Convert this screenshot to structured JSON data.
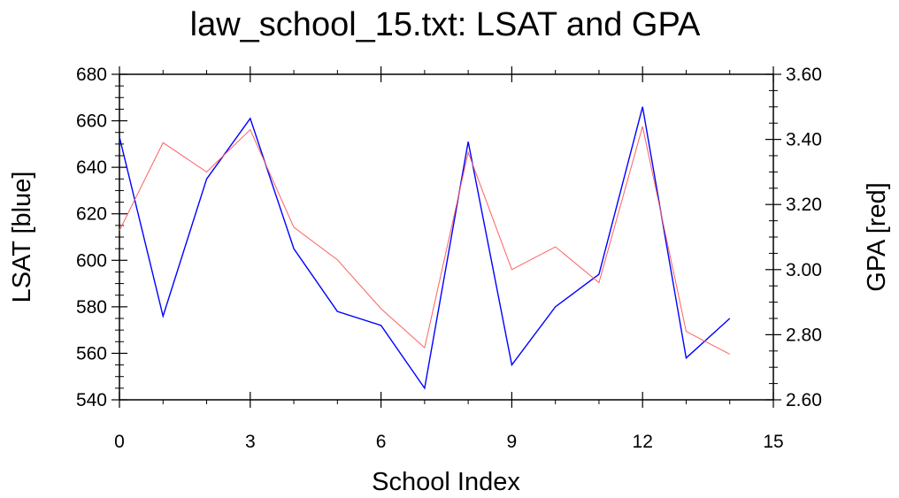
{
  "chart_data": {
    "type": "line",
    "title": "law_school_15.txt: LSAT and GPA",
    "xlabel": "School Index",
    "ylabel_left": "LSAT [blue]",
    "ylabel_right": "GPA [red]",
    "xlim": [
      0,
      15
    ],
    "ylim_left": [
      540,
      680
    ],
    "ylim_right": [
      2.6,
      3.6
    ],
    "x_ticks": [
      "0",
      "3",
      "6",
      "9",
      "12",
      "15"
    ],
    "y_left_ticks": [
      "540",
      "560",
      "580",
      "600",
      "620",
      "640",
      "660",
      "680"
    ],
    "y_right_ticks": [
      "2.60",
      "2.80",
      "3.00",
      "3.20",
      "3.40",
      "3.60"
    ],
    "grid": false,
    "x": [
      0,
      1,
      2,
      3,
      4,
      5,
      6,
      7,
      8,
      9,
      10,
      11,
      12,
      13,
      14
    ],
    "series": [
      {
        "name": "LSAT",
        "axis": "left",
        "color": "#0000ff",
        "values": [
          653,
          576,
          635,
          661,
          605,
          578,
          572,
          545,
          651,
          555,
          580,
          594,
          666,
          558,
          575
        ]
      },
      {
        "name": "GPA",
        "axis": "right",
        "color": "#ff6060",
        "values": [
          3.12,
          3.39,
          3.3,
          3.43,
          3.13,
          3.03,
          2.88,
          2.76,
          3.36,
          3.0,
          3.07,
          2.96,
          3.44,
          2.81,
          2.74
        ]
      }
    ]
  }
}
